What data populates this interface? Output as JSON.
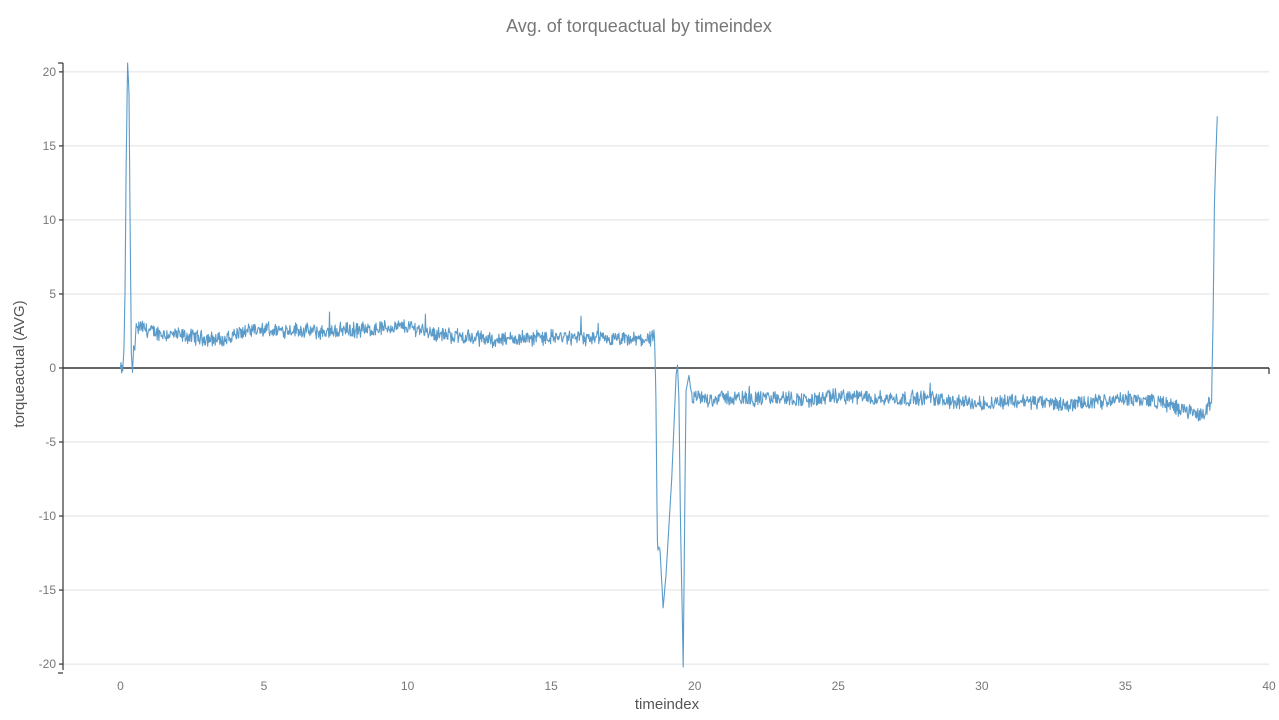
{
  "chart_data": {
    "type": "line",
    "title": "Avg. of torqueactual by timeindex",
    "xlabel": "timeindex",
    "ylabel": "torqueactual (AVG)",
    "xlim": [
      -2,
      40
    ],
    "ylim": [
      -20.4,
      20.6
    ],
    "xticks": [
      0,
      5,
      10,
      15,
      20,
      25,
      30,
      35,
      40
    ],
    "yticks": [
      -20,
      -15,
      -10,
      -5,
      0,
      5,
      10,
      15,
      20
    ],
    "grid": true,
    "legend": "none",
    "colors": {
      "series": "#5b9bc9",
      "grid": "#e0e0e0",
      "axis": "#333333"
    },
    "series": [
      {
        "color": "#5b9bc9",
        "noise_amplitude": 0.45,
        "x": [
          0.0,
          0.08,
          0.12,
          0.16,
          0.2,
          0.25,
          0.3,
          0.34,
          0.38,
          0.42,
          0.46,
          0.5,
          0.55,
          0.6,
          0.7,
          1.0,
          1.5,
          2.0,
          2.5,
          3.0,
          3.5,
          3.6,
          3.9,
          4.2,
          5.0,
          6.0,
          7.0,
          7.5,
          7.8,
          8.5,
          9.0,
          10.0,
          10.5,
          11.0,
          12.0,
          13.0,
          14.0,
          15.0,
          16.0,
          17.0,
          18.0,
          18.5,
          18.6,
          18.65,
          18.7,
          18.8,
          18.9,
          19.0,
          19.2,
          19.35,
          19.4,
          19.45,
          19.5,
          19.6,
          19.65,
          19.7,
          19.8,
          19.9,
          20.0,
          20.5,
          21.0,
          22.0,
          23.0,
          24.0,
          25.0,
          26.0,
          27.0,
          28.0,
          29.0,
          30.0,
          31.0,
          32.0,
          33.0,
          33.5,
          34.0,
          35.0,
          36.0,
          36.5,
          37.0,
          37.5,
          37.8,
          37.9,
          38.0,
          38.05,
          38.1,
          38.15,
          38.2
        ],
        "y": [
          -0.1,
          -0.2,
          1.2,
          5.0,
          14.0,
          20.6,
          18.5,
          9.0,
          1.0,
          -0.3,
          1.5,
          1.2,
          3.0,
          2.6,
          2.8,
          2.5,
          2.3,
          2.2,
          2.1,
          2.0,
          1.9,
          1.8,
          2.2,
          2.4,
          2.5,
          2.6,
          2.4,
          2.5,
          2.6,
          2.5,
          2.7,
          2.8,
          2.6,
          2.3,
          2.1,
          1.9,
          2.0,
          2.1,
          2.0,
          1.9,
          1.9,
          2.0,
          2.1,
          -2.0,
          -12.2,
          -12.6,
          -16.2,
          -14.0,
          -7.5,
          -0.5,
          0.2,
          -2.0,
          -10.0,
          -20.2,
          -10.0,
          -1.5,
          -0.5,
          -2.0,
          -2.0,
          -2.1,
          -2.0,
          -2.1,
          -2.0,
          -2.2,
          -1.9,
          -2.0,
          -2.1,
          -2.0,
          -2.3,
          -2.4,
          -2.2,
          -2.3,
          -2.5,
          -2.4,
          -2.3,
          -2.1,
          -2.2,
          -2.5,
          -2.8,
          -3.2,
          -3.0,
          -2.5,
          -2.3,
          3.0,
          11.0,
          14.5,
          17.0
        ]
      }
    ]
  }
}
